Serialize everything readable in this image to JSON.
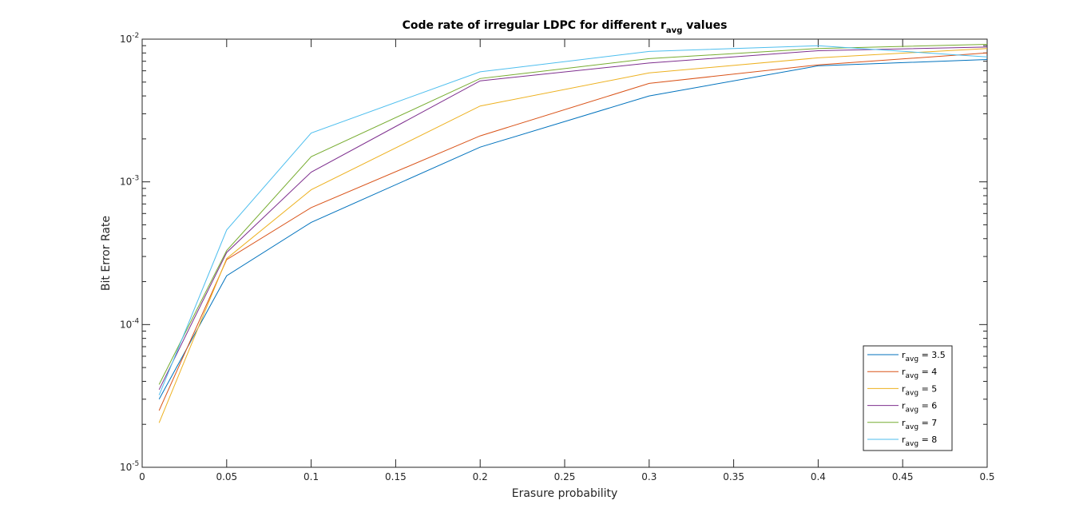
{
  "chart_data": {
    "type": "line",
    "title_prefix": "Code rate of irregular LDPC for different r",
    "title_sub": "avg",
    "title_suffix": " values",
    "xlabel": "Erasure probability",
    "ylabel": "Bit Error Rate",
    "xlim": [
      0,
      0.5
    ],
    "ylim": [
      1e-05,
      0.01
    ],
    "y_scale": "log",
    "grid": false,
    "legend_position": "bottom-right",
    "x_ticks": [
      "0",
      "0.05",
      "0.1",
      "0.15",
      "0.2",
      "0.25",
      "0.3",
      "0.35",
      "0.4",
      "0.45",
      "0.5"
    ],
    "y_ticks": [
      {
        "base": "10",
        "exp": "-5"
      },
      {
        "base": "10",
        "exp": "-4"
      },
      {
        "base": "10",
        "exp": "-3"
      },
      {
        "base": "10",
        "exp": "-2"
      }
    ],
    "x": [
      0.01,
      0.05,
      0.1,
      0.2,
      0.3,
      0.4,
      0.5
    ],
    "series": [
      {
        "name_prefix": "r",
        "name_sub": "avg",
        "name_suffix": " = 3.5",
        "color": "#0072BD",
        "values": [
          3e-05,
          0.00022,
          0.00052,
          0.00175,
          0.004,
          0.0065,
          0.0072
        ]
      },
      {
        "name_prefix": "r",
        "name_sub": "avg",
        "name_suffix": " = 4",
        "color": "#D95319",
        "values": [
          2.5e-05,
          0.000285,
          0.00066,
          0.0021,
          0.0049,
          0.0066,
          0.008
        ]
      },
      {
        "name_prefix": "r",
        "name_sub": "avg",
        "name_suffix": " = 5",
        "color": "#EDB120",
        "values": [
          2.05e-05,
          0.00029,
          0.00088,
          0.0034,
          0.0058,
          0.0074,
          0.0086
        ]
      },
      {
        "name_prefix": "r",
        "name_sub": "avg",
        "name_suffix": " = 6",
        "color": "#7E2F8E",
        "values": [
          3.5e-05,
          0.00032,
          0.00117,
          0.0051,
          0.0068,
          0.0083,
          0.0088
        ]
      },
      {
        "name_prefix": "r",
        "name_sub": "avg",
        "name_suffix": " = 7",
        "color": "#77AC30",
        "values": [
          3.8e-05,
          0.00033,
          0.0015,
          0.0053,
          0.0073,
          0.0086,
          0.0092
        ]
      },
      {
        "name_prefix": "r",
        "name_sub": "avg",
        "name_suffix": " = 8",
        "color": "#4DBEEE",
        "values": [
          3.2e-05,
          0.00046,
          0.0022,
          0.0059,
          0.0082,
          0.009,
          0.0075
        ]
      }
    ]
  }
}
